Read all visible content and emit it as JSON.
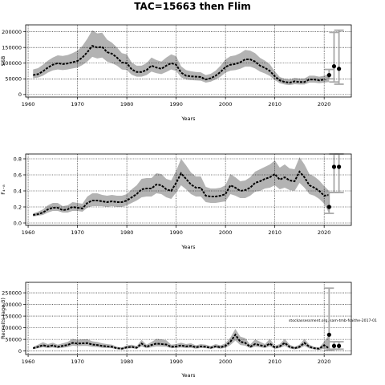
{
  "title": "TAC=15663 then Flim",
  "watermark": "stockassessment.org, sam-tmb-fsaithe-2017-01",
  "colors": {
    "band": "#b3b3b3",
    "line": "#000000",
    "proj": "#a8a8a8",
    "grid": "#000000"
  },
  "chart_data": [
    {
      "type": "line",
      "ylabel": "SSB",
      "xlabel": "Years",
      "xlim": [
        1959.5,
        2025.5
      ],
      "ylim": [
        -8000,
        222000
      ],
      "xticks": [
        1960,
        1970,
        1980,
        1990,
        2000,
        2010,
        2020
      ],
      "yticks": [
        0,
        50000,
        100000,
        150000,
        200000
      ],
      "ytick_labels": [
        "0",
        "50000",
        "100000",
        "150000",
        "200000"
      ],
      "grid": true,
      "x": [
        1961,
        1962,
        1963,
        1964,
        1965,
        1966,
        1967,
        1968,
        1969,
        1970,
        1971,
        1972,
        1973,
        1974,
        1975,
        1976,
        1977,
        1978,
        1979,
        1980,
        1981,
        1982,
        1983,
        1984,
        1985,
        1986,
        1987,
        1988,
        1989,
        1990,
        1991,
        1992,
        1993,
        1994,
        1995,
        1996,
        1997,
        1998,
        1999,
        2000,
        2001,
        2002,
        2003,
        2004,
        2005,
        2006,
        2007,
        2008,
        2009,
        2010,
        2011,
        2012,
        2013,
        2014,
        2015,
        2016,
        2017,
        2018,
        2019,
        2020,
        2021
      ],
      "estimate": [
        62000,
        65000,
        74000,
        86000,
        95000,
        100000,
        97000,
        99000,
        103000,
        107000,
        118000,
        135000,
        155000,
        150000,
        152000,
        135000,
        130000,
        118000,
        102000,
        100000,
        80000,
        72000,
        72000,
        78000,
        92000,
        86000,
        82000,
        92000,
        100000,
        95000,
        70000,
        60000,
        58000,
        57000,
        56000,
        48000,
        52000,
        60000,
        72000,
        88000,
        95000,
        97000,
        103000,
        112000,
        112000,
        105000,
        92000,
        85000,
        75000,
        58000,
        45000,
        40000,
        38000,
        42000,
        40000,
        40000,
        48000,
        48000,
        45000,
        48000,
        52000
      ],
      "lower": [
        52000,
        54000,
        60000,
        70000,
        77000,
        80000,
        78000,
        80000,
        83000,
        86000,
        94000,
        105000,
        120000,
        115000,
        118000,
        105000,
        100000,
        92000,
        80000,
        78000,
        63000,
        57000,
        57000,
        62000,
        73000,
        68000,
        65000,
        72000,
        80000,
        75000,
        55000,
        48000,
        46000,
        45000,
        44000,
        38000,
        41000,
        48000,
        57000,
        70000,
        76000,
        78000,
        82000,
        89000,
        89000,
        83000,
        73000,
        67000,
        59000,
        46000,
        36000,
        32000,
        30000,
        33000,
        32000,
        32000,
        38000,
        38000,
        36000,
        38000,
        40000
      ],
      "upper": [
        80000,
        84000,
        95000,
        108000,
        118000,
        125000,
        123000,
        126000,
        132000,
        140000,
        155000,
        178000,
        205000,
        195000,
        197000,
        175000,
        165000,
        150000,
        132000,
        128000,
        102000,
        92000,
        92000,
        100000,
        118000,
        110000,
        105000,
        118000,
        128000,
        122000,
        90000,
        78000,
        74000,
        72000,
        71000,
        62000,
        66000,
        76000,
        92000,
        112000,
        122000,
        125000,
        132000,
        142000,
        140000,
        132000,
        117000,
        108000,
        96000,
        74000,
        56000,
        50000,
        48000,
        53000,
        51000,
        51000,
        60000,
        60000,
        57000,
        60000,
        66000
      ],
      "projection": [
        {
          "x": 2021,
          "estimate": 62000,
          "lower": 50000,
          "upper": 80000
        },
        {
          "x": 2022,
          "estimate": 90000,
          "lower": 40000,
          "upper": 198000
        },
        {
          "x": 2023,
          "estimate": 82000,
          "lower": 33000,
          "upper": 205000
        }
      ]
    },
    {
      "type": "line",
      "ylabel": "F₄₋₈",
      "xlabel": "Years",
      "xlim": [
        1959.5,
        2025.5
      ],
      "ylim": [
        -0.03,
        0.86
      ],
      "xticks": [
        1960,
        1970,
        1980,
        1990,
        2000,
        2010,
        2020
      ],
      "yticks": [
        0.0,
        0.2,
        0.4,
        0.6,
        0.8
      ],
      "ytick_labels": [
        "0.0",
        "0.2",
        "0.4",
        "0.6",
        "0.8"
      ],
      "grid": true,
      "x": [
        1961,
        1962,
        1963,
        1964,
        1965,
        1966,
        1967,
        1968,
        1969,
        1970,
        1971,
        1972,
        1973,
        1974,
        1975,
        1976,
        1977,
        1978,
        1979,
        1980,
        1981,
        1982,
        1983,
        1984,
        1985,
        1986,
        1987,
        1988,
        1989,
        1990,
        1991,
        1992,
        1993,
        1994,
        1995,
        1996,
        1997,
        1998,
        1999,
        2000,
        2001,
        2002,
        2003,
        2004,
        2005,
        2006,
        2007,
        2008,
        2009,
        2010,
        2011,
        2012,
        2013,
        2014,
        2015,
        2016,
        2017,
        2018,
        2019,
        2020,
        2021
      ],
      "estimate": [
        0.1,
        0.11,
        0.13,
        0.17,
        0.19,
        0.19,
        0.16,
        0.17,
        0.2,
        0.19,
        0.18,
        0.25,
        0.28,
        0.28,
        0.27,
        0.26,
        0.27,
        0.26,
        0.26,
        0.28,
        0.32,
        0.36,
        0.42,
        0.43,
        0.43,
        0.48,
        0.47,
        0.42,
        0.4,
        0.5,
        0.62,
        0.55,
        0.48,
        0.44,
        0.44,
        0.34,
        0.33,
        0.33,
        0.34,
        0.36,
        0.47,
        0.44,
        0.4,
        0.41,
        0.44,
        0.5,
        0.52,
        0.55,
        0.57,
        0.61,
        0.54,
        0.57,
        0.53,
        0.52,
        0.64,
        0.57,
        0.47,
        0.44,
        0.4,
        0.34,
        0.35
      ],
      "lower": [
        0.08,
        0.09,
        0.1,
        0.13,
        0.15,
        0.15,
        0.13,
        0.13,
        0.15,
        0.15,
        0.14,
        0.19,
        0.21,
        0.21,
        0.21,
        0.2,
        0.21,
        0.2,
        0.2,
        0.22,
        0.25,
        0.28,
        0.32,
        0.33,
        0.33,
        0.37,
        0.36,
        0.32,
        0.3,
        0.38,
        0.47,
        0.42,
        0.36,
        0.33,
        0.33,
        0.26,
        0.25,
        0.25,
        0.26,
        0.27,
        0.36,
        0.34,
        0.31,
        0.31,
        0.34,
        0.39,
        0.4,
        0.43,
        0.44,
        0.47,
        0.42,
        0.44,
        0.41,
        0.4,
        0.5,
        0.44,
        0.36,
        0.34,
        0.3,
        0.24,
        0.12
      ],
      "upper": [
        0.12,
        0.14,
        0.17,
        0.22,
        0.25,
        0.25,
        0.21,
        0.22,
        0.26,
        0.25,
        0.24,
        0.33,
        0.37,
        0.37,
        0.35,
        0.34,
        0.35,
        0.34,
        0.34,
        0.36,
        0.42,
        0.47,
        0.55,
        0.56,
        0.56,
        0.62,
        0.61,
        0.55,
        0.53,
        0.65,
        0.8,
        0.72,
        0.63,
        0.58,
        0.58,
        0.45,
        0.43,
        0.43,
        0.44,
        0.47,
        0.61,
        0.57,
        0.52,
        0.53,
        0.57,
        0.64,
        0.67,
        0.7,
        0.73,
        0.78,
        0.69,
        0.73,
        0.68,
        0.67,
        0.82,
        0.73,
        0.61,
        0.58,
        0.53,
        0.46,
        0.4
      ],
      "projection": [
        {
          "x": 2021,
          "estimate": 0.2,
          "lower": 0.12,
          "upper": 0.38
        },
        {
          "x": 2022,
          "estimate": 0.7,
          "lower": 0.38,
          "upper": 0.86
        },
        {
          "x": 2023,
          "estimate": 0.7,
          "lower": 0.38,
          "upper": 0.86
        }
      ]
    },
    {
      "type": "line",
      "ylabel": "Recruits (age 3)",
      "xlabel": "Years",
      "xlim": [
        1959.5,
        2025.5
      ],
      "ylim": [
        -15000,
        295000
      ],
      "xticks": [
        1960,
        1970,
        1980,
        1990,
        2000,
        2010,
        2020
      ],
      "yticks": [
        0,
        50000,
        100000,
        150000,
        200000,
        250000
      ],
      "ytick_labels": [
        "0",
        "50000",
        "100000",
        "150000",
        "200000",
        "250000"
      ],
      "grid": true,
      "x": [
        1961,
        1962,
        1963,
        1964,
        1965,
        1966,
        1967,
        1968,
        1969,
        1970,
        1971,
        1972,
        1973,
        1974,
        1975,
        1976,
        1977,
        1978,
        1979,
        1980,
        1981,
        1982,
        1983,
        1984,
        1985,
        1986,
        1987,
        1988,
        1989,
        1990,
        1991,
        1992,
        1993,
        1994,
        1995,
        1996,
        1997,
        1998,
        1999,
        2000,
        2001,
        2002,
        2003,
        2004,
        2005,
        2006,
        2007,
        2008,
        2009,
        2010,
        2011,
        2012,
        2013,
        2014,
        2015,
        2016,
        2017,
        2018,
        2019,
        2020,
        2021
      ],
      "estimate": [
        12000,
        18000,
        25000,
        20000,
        24000,
        18000,
        22000,
        26000,
        35000,
        32000,
        33000,
        34000,
        28000,
        26000,
        22000,
        20000,
        18000,
        12000,
        10000,
        16000,
        18000,
        14000,
        32000,
        18000,
        26000,
        32000,
        30000,
        28000,
        18000,
        20000,
        24000,
        20000,
        22000,
        16000,
        20000,
        18000,
        14000,
        20000,
        16000,
        22000,
        40000,
        70000,
        40000,
        35000,
        18000,
        30000,
        25000,
        20000,
        32000,
        15000,
        20000,
        35000,
        18000,
        12000,
        18000,
        35000,
        18000,
        12000,
        10000,
        25000,
        12000
      ],
      "lower": [
        8000,
        12000,
        16000,
        13000,
        15000,
        12000,
        14000,
        17000,
        23000,
        21000,
        22000,
        22000,
        18000,
        17000,
        14000,
        13000,
        12000,
        8000,
        6000,
        10000,
        12000,
        9000,
        20000,
        12000,
        16000,
        20000,
        19000,
        18000,
        12000,
        13000,
        15000,
        13000,
        14000,
        10000,
        13000,
        12000,
        9000,
        13000,
        10000,
        14000,
        26000,
        45000,
        26000,
        23000,
        12000,
        19000,
        16000,
        13000,
        20000,
        9000,
        13000,
        22000,
        11000,
        7000,
        11000,
        22000,
        11000,
        7000,
        5000,
        10000,
        3000
      ],
      "upper": [
        18000,
        27000,
        38000,
        30000,
        36000,
        27000,
        33000,
        39000,
        52000,
        48000,
        50000,
        51000,
        42000,
        39000,
        33000,
        30000,
        27000,
        18000,
        15000,
        24000,
        27000,
        21000,
        48000,
        27000,
        39000,
        52000,
        50000,
        46000,
        27000,
        30000,
        36000,
        30000,
        33000,
        24000,
        30000,
        27000,
        21000,
        30000,
        24000,
        33000,
        58000,
        95000,
        62000,
        55000,
        28000,
        50000,
        40000,
        30000,
        52000,
        23000,
        30000,
        52000,
        27000,
        18000,
        27000,
        52000,
        27000,
        18000,
        15000,
        40000,
        70000
      ],
      "projection": [
        {
          "x": 2021,
          "estimate": 70000,
          "lower": 3000,
          "upper": 270000
        },
        {
          "x": 2022,
          "estimate": 22000,
          "lower": 8000,
          "upper": 40000
        },
        {
          "x": 2023,
          "estimate": 22000,
          "lower": 8000,
          "upper": 40000
        }
      ]
    }
  ]
}
